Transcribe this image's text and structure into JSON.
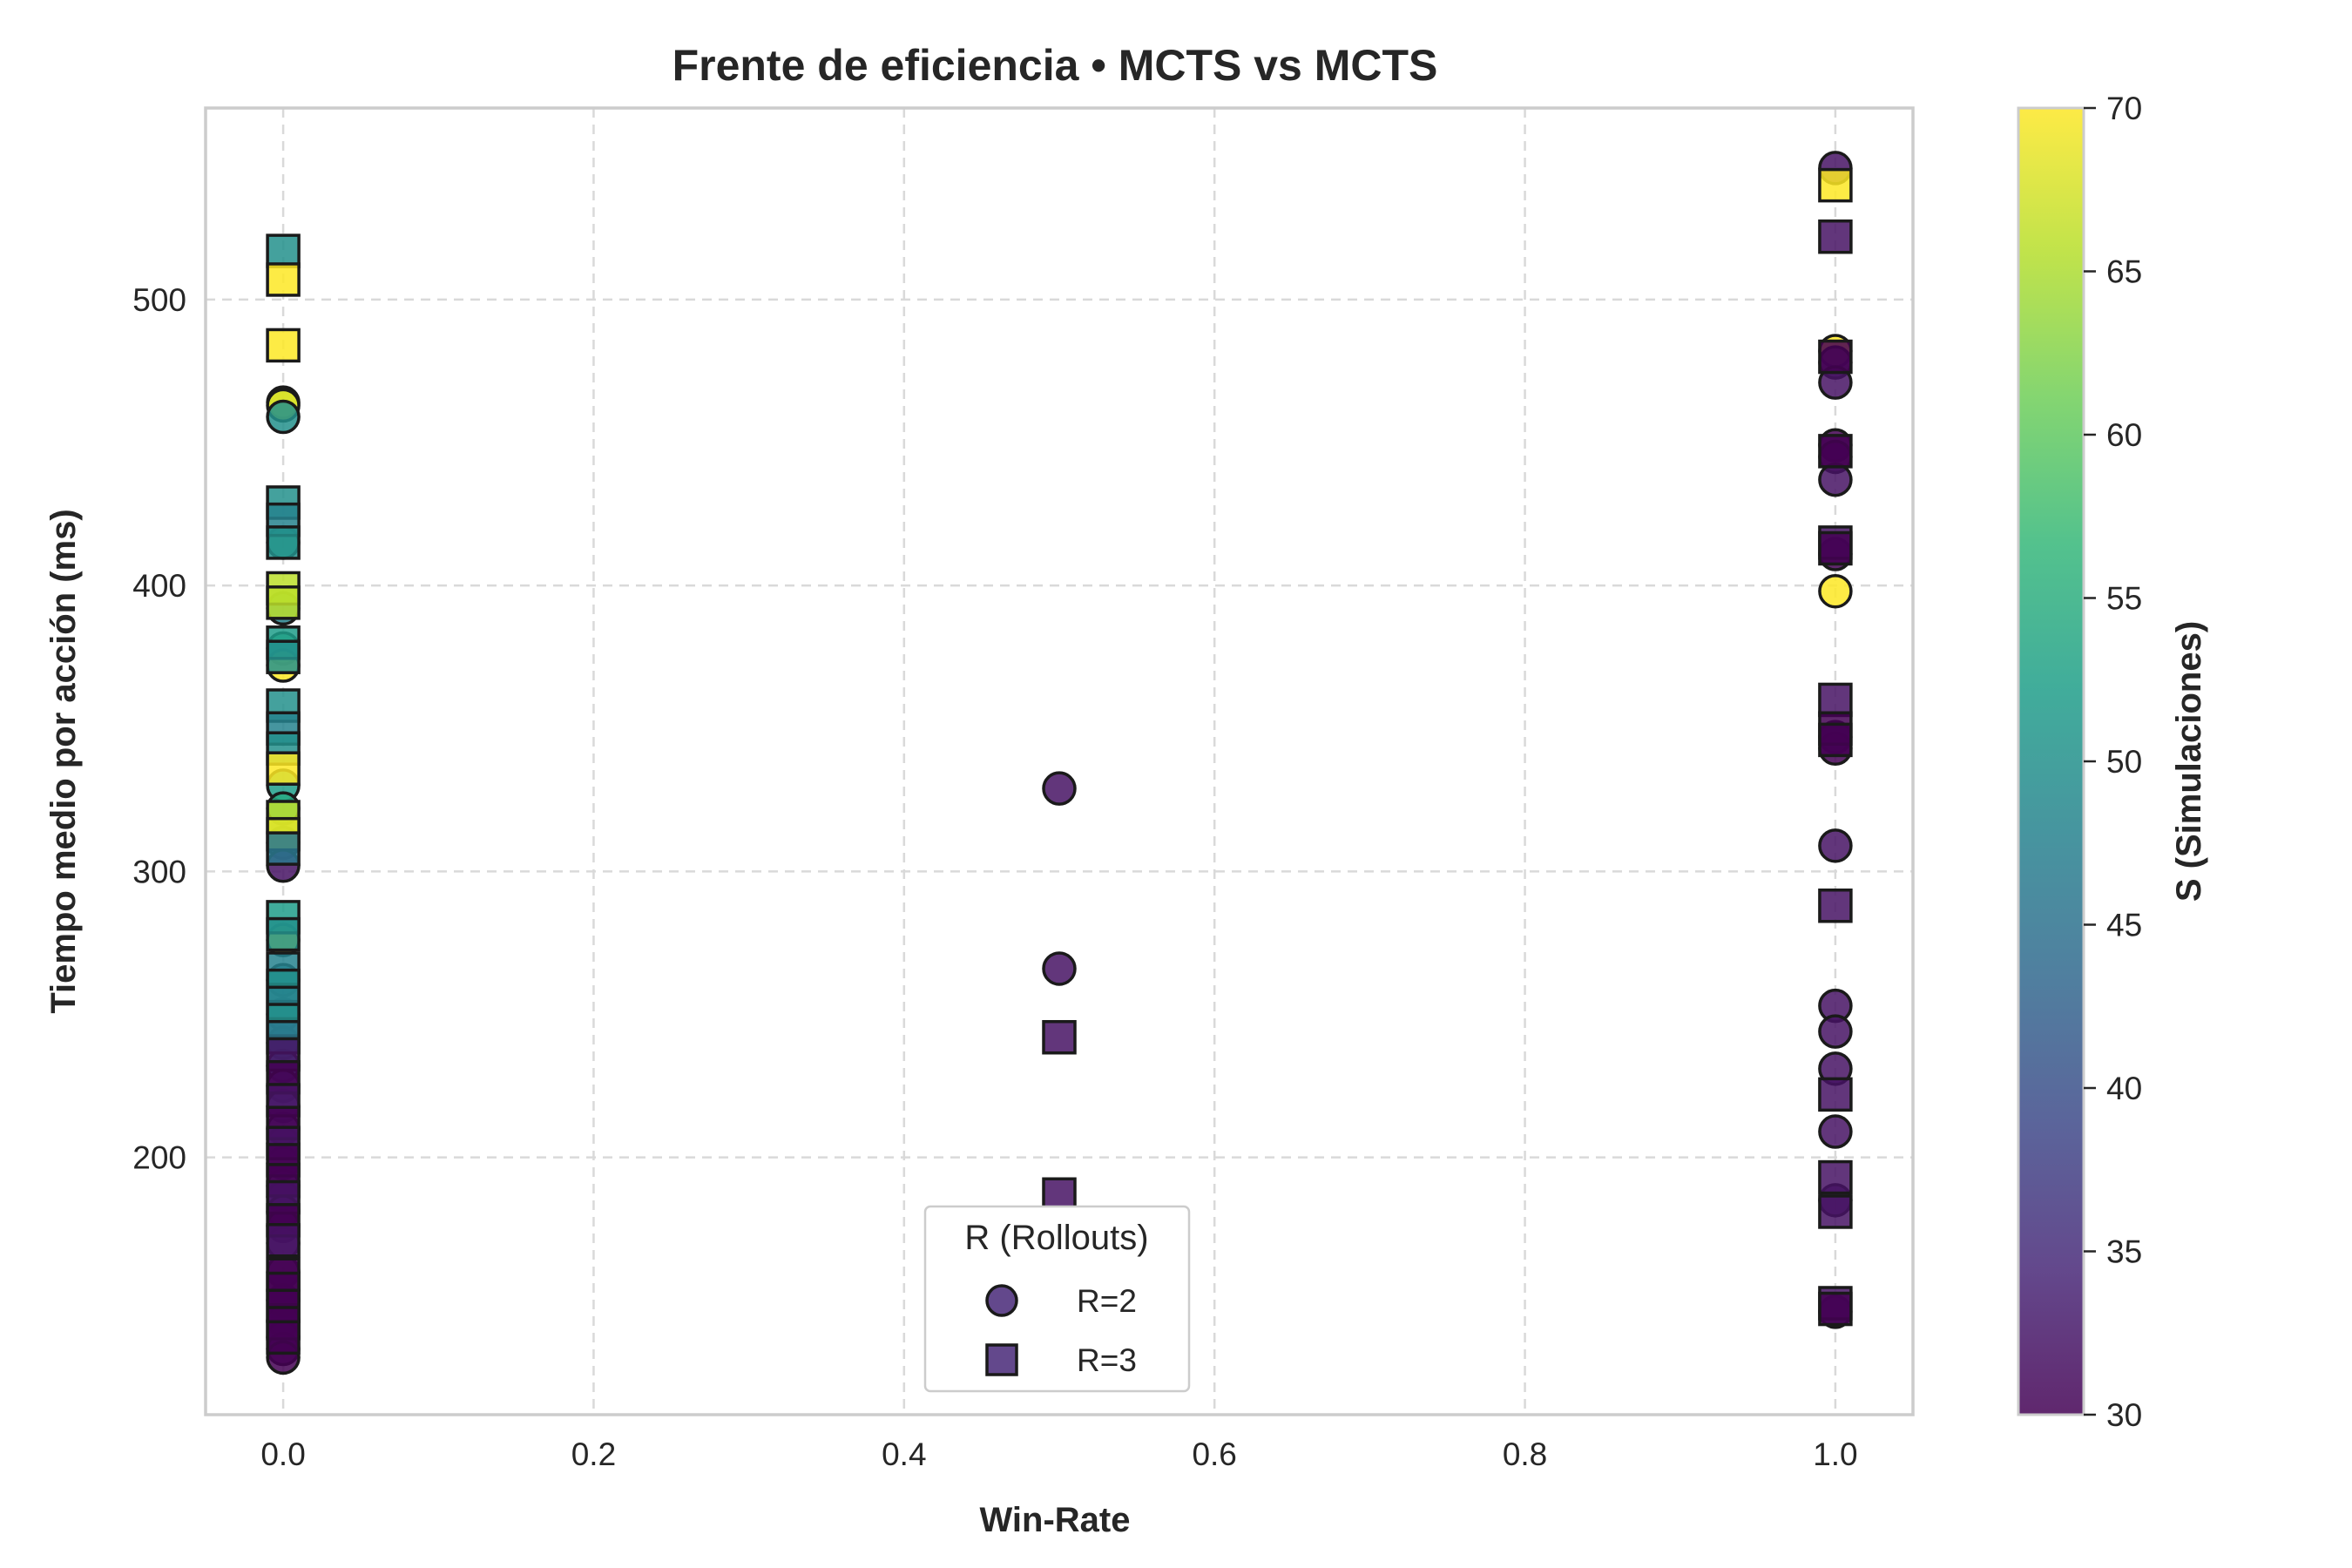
{
  "chart_data": {
    "type": "scatter",
    "title": "Frente de eficiencia • MCTS vs MCTS",
    "xlabel": "Win-Rate",
    "ylabel": "Tiempo medio por acción (ms)",
    "xlim": [
      -0.05,
      1.05
    ],
    "ylim": [
      110,
      567
    ],
    "xticks": [
      0.0,
      0.2,
      0.4,
      0.6,
      0.8,
      1.0
    ],
    "xtick_labels": [
      "0.0",
      "0.2",
      "0.4",
      "0.6",
      "0.8",
      "1.0"
    ],
    "yticks": [
      200,
      300,
      400,
      500
    ],
    "ytick_labels": [
      "200",
      "300",
      "400",
      "500"
    ],
    "grid": true,
    "colorbar": {
      "label": "S (Simulaciones)",
      "range": [
        30,
        70
      ],
      "ticks": [
        30,
        35,
        40,
        45,
        50,
        55,
        60,
        65,
        70
      ],
      "tick_labels": [
        "30",
        "35",
        "40",
        "45",
        "50",
        "55",
        "60",
        "65",
        "70"
      ],
      "colormap": "viridis",
      "stops": [
        "#440154",
        "#482878",
        "#3e4989",
        "#31688e",
        "#26828e",
        "#1f9e89",
        "#35b779",
        "#6ece58",
        "#b5de2b",
        "#fde725"
      ]
    },
    "legend": {
      "title": "R (Rollouts)",
      "placement": "lower-center",
      "entries": [
        {
          "label": "R=2",
          "marker": "circle"
        },
        {
          "label": "R=3",
          "marker": "square"
        }
      ]
    },
    "series": [
      {
        "name": "R=2",
        "marker": "circle",
        "points": [
          {
            "x": 0.0,
            "y": 464,
            "s": 66
          },
          {
            "x": 0.0,
            "y": 463,
            "s": 68
          },
          {
            "x": 0.0,
            "y": 459,
            "s": 50
          },
          {
            "x": 0.0,
            "y": 415,
            "s": 54
          },
          {
            "x": 0.0,
            "y": 392,
            "s": 48
          },
          {
            "x": 0.0,
            "y": 378,
            "s": 56
          },
          {
            "x": 0.0,
            "y": 372,
            "s": 70
          },
          {
            "x": 0.0,
            "y": 330,
            "s": 52
          },
          {
            "x": 0.0,
            "y": 322,
            "s": 54
          },
          {
            "x": 0.0,
            "y": 310,
            "s": 46
          },
          {
            "x": 0.0,
            "y": 302,
            "s": 32
          },
          {
            "x": 0.0,
            "y": 276,
            "s": 70
          },
          {
            "x": 0.0,
            "y": 262,
            "s": 48
          },
          {
            "x": 0.0,
            "y": 250,
            "s": 50
          },
          {
            "x": 0.0,
            "y": 240,
            "s": 46
          },
          {
            "x": 0.0,
            "y": 232,
            "s": 44
          },
          {
            "x": 0.0,
            "y": 225,
            "s": 34
          },
          {
            "x": 0.0,
            "y": 218,
            "s": 36
          },
          {
            "x": 0.0,
            "y": 210,
            "s": 34
          },
          {
            "x": 0.0,
            "y": 205,
            "s": 32
          },
          {
            "x": 0.0,
            "y": 198,
            "s": 30
          },
          {
            "x": 0.0,
            "y": 190,
            "s": 32
          },
          {
            "x": 0.0,
            "y": 186,
            "s": 34
          },
          {
            "x": 0.0,
            "y": 181,
            "s": 32
          },
          {
            "x": 0.0,
            "y": 176,
            "s": 30
          },
          {
            "x": 0.0,
            "y": 170,
            "s": 32
          },
          {
            "x": 0.0,
            "y": 160,
            "s": 30
          },
          {
            "x": 0.0,
            "y": 150,
            "s": 30
          },
          {
            "x": 0.0,
            "y": 143,
            "s": 30
          },
          {
            "x": 0.0,
            "y": 137,
            "s": 32
          },
          {
            "x": 0.0,
            "y": 133,
            "s": 30
          },
          {
            "x": 0.0,
            "y": 130,
            "s": 30
          },
          {
            "x": 0.5,
            "y": 329,
            "s": 32
          },
          {
            "x": 0.5,
            "y": 266,
            "s": 32
          },
          {
            "x": 1.0,
            "y": 546,
            "s": 32
          },
          {
            "x": 1.0,
            "y": 482,
            "s": 70
          },
          {
            "x": 1.0,
            "y": 478,
            "s": 32
          },
          {
            "x": 1.0,
            "y": 471,
            "s": 32
          },
          {
            "x": 1.0,
            "y": 449,
            "s": 30
          },
          {
            "x": 1.0,
            "y": 445,
            "s": 30
          },
          {
            "x": 1.0,
            "y": 437,
            "s": 32
          },
          {
            "x": 1.0,
            "y": 411,
            "s": 30
          },
          {
            "x": 1.0,
            "y": 398,
            "s": 70
          },
          {
            "x": 1.0,
            "y": 347,
            "s": 32
          },
          {
            "x": 1.0,
            "y": 343,
            "s": 30
          },
          {
            "x": 1.0,
            "y": 309,
            "s": 32
          },
          {
            "x": 1.0,
            "y": 253,
            "s": 32
          },
          {
            "x": 1.0,
            "y": 244,
            "s": 32
          },
          {
            "x": 1.0,
            "y": 231,
            "s": 32
          },
          {
            "x": 1.0,
            "y": 209,
            "s": 32
          },
          {
            "x": 1.0,
            "y": 185,
            "s": 32
          },
          {
            "x": 1.0,
            "y": 146,
            "s": 32
          }
        ]
      },
      {
        "name": "R=3",
        "marker": "square",
        "points": [
          {
            "x": 0.0,
            "y": 517,
            "s": 50
          },
          {
            "x": 0.0,
            "y": 507,
            "s": 70
          },
          {
            "x": 0.0,
            "y": 484,
            "s": 70
          },
          {
            "x": 0.0,
            "y": 429,
            "s": 50
          },
          {
            "x": 0.0,
            "y": 423,
            "s": 48
          },
          {
            "x": 0.0,
            "y": 415,
            "s": 50
          },
          {
            "x": 0.0,
            "y": 399,
            "s": 66
          },
          {
            "x": 0.0,
            "y": 394,
            "s": 66
          },
          {
            "x": 0.0,
            "y": 380,
            "s": 52
          },
          {
            "x": 0.0,
            "y": 375,
            "s": 50
          },
          {
            "x": 0.0,
            "y": 358,
            "s": 50
          },
          {
            "x": 0.0,
            "y": 350,
            "s": 48
          },
          {
            "x": 0.0,
            "y": 343,
            "s": 50
          },
          {
            "x": 0.0,
            "y": 336,
            "s": 70
          },
          {
            "x": 0.0,
            "y": 319,
            "s": 66
          },
          {
            "x": 0.0,
            "y": 313,
            "s": 68
          },
          {
            "x": 0.0,
            "y": 308,
            "s": 46
          },
          {
            "x": 0.0,
            "y": 284,
            "s": 52
          },
          {
            "x": 0.0,
            "y": 278,
            "s": 50
          },
          {
            "x": 0.0,
            "y": 266,
            "s": 48
          },
          {
            "x": 0.0,
            "y": 260,
            "s": 50
          },
          {
            "x": 0.0,
            "y": 254,
            "s": 48
          },
          {
            "x": 0.0,
            "y": 248,
            "s": 50
          },
          {
            "x": 0.0,
            "y": 242,
            "s": 46
          },
          {
            "x": 0.0,
            "y": 236,
            "s": 32
          },
          {
            "x": 0.0,
            "y": 228,
            "s": 30
          },
          {
            "x": 0.0,
            "y": 220,
            "s": 32
          },
          {
            "x": 0.0,
            "y": 212,
            "s": 30
          },
          {
            "x": 0.0,
            "y": 205,
            "s": 32
          },
          {
            "x": 0.0,
            "y": 199,
            "s": 30
          },
          {
            "x": 0.0,
            "y": 192,
            "s": 30
          },
          {
            "x": 0.0,
            "y": 186,
            "s": 32
          },
          {
            "x": 0.0,
            "y": 178,
            "s": 30
          },
          {
            "x": 0.0,
            "y": 171,
            "s": 32
          },
          {
            "x": 0.0,
            "y": 159,
            "s": 30
          },
          {
            "x": 0.0,
            "y": 154,
            "s": 30
          },
          {
            "x": 0.0,
            "y": 148,
            "s": 30
          },
          {
            "x": 0.0,
            "y": 142,
            "s": 30
          },
          {
            "x": 0.0,
            "y": 137,
            "s": 30
          },
          {
            "x": 0.5,
            "y": 242,
            "s": 32
          },
          {
            "x": 0.5,
            "y": 187,
            "s": 32
          },
          {
            "x": 1.0,
            "y": 540,
            "s": 70
          },
          {
            "x": 1.0,
            "y": 522,
            "s": 32
          },
          {
            "x": 1.0,
            "y": 480,
            "s": 30
          },
          {
            "x": 1.0,
            "y": 447,
            "s": 30
          },
          {
            "x": 1.0,
            "y": 415,
            "s": 32
          },
          {
            "x": 1.0,
            "y": 413,
            "s": 30
          },
          {
            "x": 1.0,
            "y": 360,
            "s": 32
          },
          {
            "x": 1.0,
            "y": 350,
            "s": 30
          },
          {
            "x": 1.0,
            "y": 346,
            "s": 30
          },
          {
            "x": 1.0,
            "y": 288,
            "s": 32
          },
          {
            "x": 1.0,
            "y": 222,
            "s": 32
          },
          {
            "x": 1.0,
            "y": 193,
            "s": 32
          },
          {
            "x": 1.0,
            "y": 181,
            "s": 32
          },
          {
            "x": 1.0,
            "y": 149,
            "s": 32
          },
          {
            "x": 1.0,
            "y": 147,
            "s": 30
          }
        ]
      }
    ]
  }
}
